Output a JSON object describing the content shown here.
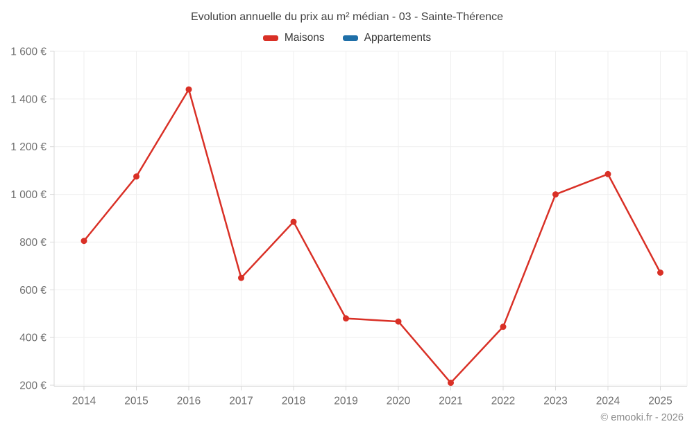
{
  "page": {
    "background": "#ffffff"
  },
  "footer": {
    "copyright": "© emooki.fr - 2026"
  },
  "chart_data": {
    "type": "line",
    "title": "Evolution annuelle du prix au m² médian - 03 - Sainte-Thérence",
    "categories": [
      "2014",
      "2015",
      "2016",
      "2017",
      "2018",
      "2019",
      "2020",
      "2021",
      "2022",
      "2023",
      "2024",
      "2025"
    ],
    "series": [
      {
        "name": "Maisons",
        "color": "#d93026",
        "values": [
          805,
          1075,
          1440,
          650,
          885,
          480,
          467,
          210,
          445,
          1000,
          1085,
          672
        ]
      },
      {
        "name": "Appartements",
        "color": "#1f6fa8",
        "values": []
      }
    ],
    "xlabel": "",
    "ylabel": "",
    "ylim": [
      200,
      1600
    ],
    "yticks": [
      200,
      400,
      600,
      800,
      1000,
      1200,
      1400,
      1600
    ],
    "ytick_labels": [
      "200 €",
      "400 €",
      "600 €",
      "800 €",
      "1 000 €",
      "1 200 €",
      "1 400 €",
      "1 600 €"
    ],
    "grid": true,
    "legend_position": "top",
    "point_radius": 4.5,
    "line_width": 2.5
  }
}
